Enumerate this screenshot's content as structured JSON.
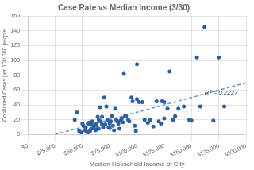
{
  "chart_data": {
    "type": "scatter",
    "title": "Case Rate vs Median Income (3/30)",
    "x_label": "Median Household Income of City",
    "y_label": "Confirmed Cases per 100,000 people",
    "xlim": [
      0,
      200000
    ],
    "ylim": [
      0,
      160
    ],
    "xticks": [
      {
        "value": 0,
        "label": "$0"
      },
      {
        "value": 25000,
        "label": "$25,000"
      },
      {
        "value": 50000,
        "label": "$50,000"
      },
      {
        "value": 75000,
        "label": "$75,000"
      },
      {
        "value": 100000,
        "label": "$100,000"
      },
      {
        "value": 125000,
        "label": "$125,000"
      },
      {
        "value": 150000,
        "label": "$150,000"
      },
      {
        "value": 175000,
        "label": "$175,000"
      },
      {
        "value": 200000,
        "label": "$200,000"
      }
    ],
    "yticks": [
      0,
      20,
      40,
      60,
      80,
      100,
      120,
      140,
      160
    ],
    "grid": true,
    "series": [
      {
        "type": "scatter",
        "color": "#2E5FA3",
        "x": [
          43000,
          45000,
          47000,
          49000,
          50000,
          51000,
          52000,
          53000,
          54000,
          55000,
          55000,
          56000,
          57000,
          58000,
          58000,
          59000,
          60000,
          61000,
          62000,
          62000,
          63000,
          63000,
          64000,
          65000,
          65000,
          66000,
          67000,
          68000,
          68000,
          69000,
          70000,
          71000,
          72000,
          73000,
          74000,
          75000,
          75000,
          76000,
          77000,
          78000,
          79000,
          80000,
          81000,
          82000,
          83000,
          84000,
          85000,
          86000,
          87000,
          88000,
          89000,
          90000,
          92000,
          93000,
          95000,
          96000,
          98000,
          99000,
          100000,
          100000,
          102000,
          105000,
          107000,
          110000,
          112000,
          115000,
          118000,
          120000,
          122000,
          123000,
          125000,
          125000,
          128000,
          130000,
          133000,
          135000,
          138000,
          143000,
          148000,
          150000,
          155000,
          158000,
          162000,
          170000,
          175000,
          180000
        ],
        "values": [
          20,
          30,
          5,
          3,
          15,
          12,
          6,
          10,
          4,
          15,
          3,
          16,
          5,
          8,
          14,
          18,
          9,
          13,
          7,
          6,
          12,
          15,
          24,
          8,
          20,
          37,
          18,
          14,
          24,
          10,
          50,
          14,
          38,
          20,
          10,
          15,
          9,
          18,
          25,
          12,
          6,
          35,
          20,
          18,
          15,
          8,
          19,
          22,
          17,
          82,
          25,
          25,
          20,
          18,
          50,
          45,
          12,
          5,
          95,
          48,
          44,
          44,
          20,
          16,
          20,
          11,
          45,
          18,
          15,
          45,
          44,
          22,
          35,
          85,
          20,
          25,
          35,
          38,
          20,
          19,
          104,
          38,
          145,
          19,
          104,
          38
        ]
      },
      {
        "type": "line",
        "color": "#5B9BD5",
        "line_style": "dashed",
        "x": [
          25000,
          200000
        ],
        "values": [
          0.388,
          70.008
        ]
      }
    ],
    "annotations": [
      {
        "text": "R² = 0.2227",
        "x": 162000,
        "y": 56
      }
    ]
  }
}
